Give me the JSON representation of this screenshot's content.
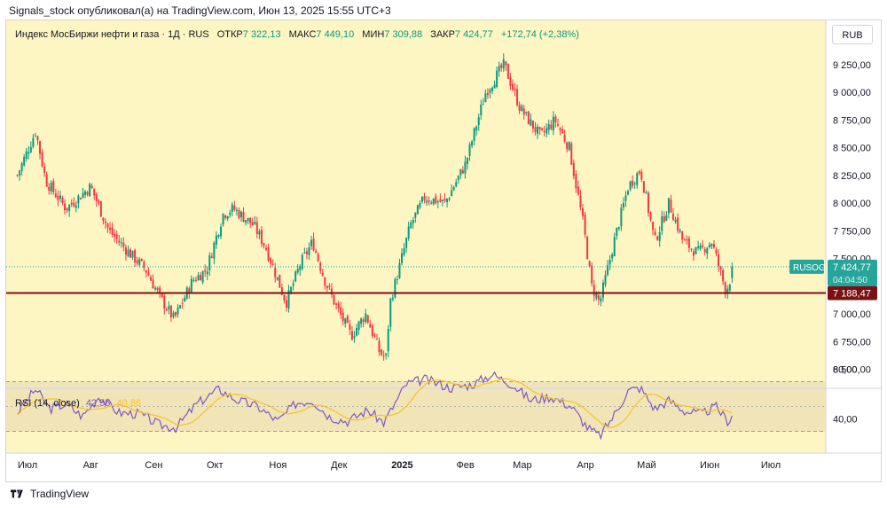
{
  "header": {
    "publisher": "Signals_stock опубликовал(а) на TradingView.com, Июн 13, 2025 15:55 UTC+3"
  },
  "legend": {
    "name": "Индекс МосБиржи нефти и газа · 1Д · RUS",
    "open_label": "ОТКР",
    "open": "7 322,13",
    "high_label": "МАКС",
    "high": "7 449,10",
    "low_label": "МИН",
    "low": "7 309,88",
    "close_label": "ЗАКР",
    "close": "7 424,77",
    "change": "+172,74 (+2,38%)"
  },
  "currency": "RUB",
  "price_axis": {
    "ticks": [
      {
        "label": "9 250,00",
        "v": 9250
      },
      {
        "label": "9 000,00",
        "v": 9000
      },
      {
        "label": "8 750,00",
        "v": 8750
      },
      {
        "label": "8 500,00",
        "v": 8500
      },
      {
        "label": "8 250,00",
        "v": 8250
      },
      {
        "label": "8 000,00",
        "v": 8000
      },
      {
        "label": "7 750,00",
        "v": 7750
      },
      {
        "label": "7 500,00",
        "v": 7500
      },
      {
        "label": "7 000,00",
        "v": 7000
      },
      {
        "label": "6 750,00",
        "v": 6750
      },
      {
        "label": "6 500,00",
        "v": 6500
      }
    ]
  },
  "price_tag": {
    "symbol": "RUSOG",
    "price": "7 424,77",
    "countdown": "04:04:50",
    "value": 7424.77
  },
  "support_line": {
    "label": "7 188,47",
    "value": 7188.47
  },
  "rsi": {
    "title": "RSI (14, close)",
    "rsi_value": "42,55",
    "ma_value": "40,86",
    "ticks": [
      {
        "label": "80,00",
        "v": 80
      },
      {
        "label": "40,00",
        "v": 40
      }
    ]
  },
  "time_axis": [
    {
      "label": "Июл",
      "bold": false
    },
    {
      "label": "Авг",
      "bold": false
    },
    {
      "label": "Сен",
      "bold": false
    },
    {
      "label": "Окт",
      "bold": false
    },
    {
      "label": "Ноя",
      "bold": false
    },
    {
      "label": "Дек",
      "bold": false
    },
    {
      "label": "2025",
      "bold": true
    },
    {
      "label": "Фев",
      "bold": false
    },
    {
      "label": "Мар",
      "bold": false
    },
    {
      "label": "Апр",
      "bold": false
    },
    {
      "label": "Май",
      "bold": false
    },
    {
      "label": "Июн",
      "bold": false
    },
    {
      "label": "Июл",
      "bold": false
    }
  ],
  "colors": {
    "up": "#089981",
    "down": "#f23645",
    "support": "#7b1113",
    "rsi": "#7e57c2",
    "rsi_ma": "#f7c325",
    "bg": "#fdf6c3",
    "tag": "#26a69a"
  },
  "footer": {
    "brand": "TradingView"
  },
  "chart_data": {
    "type": "candlestick",
    "interval": "1D",
    "y_range": [
      6400,
      9400
    ],
    "close_path": [
      [
        "2024-06-26",
        8250
      ],
      [
        "2024-07-05",
        8650
      ],
      [
        "2024-07-10",
        8200
      ],
      [
        "2024-07-20",
        7950
      ],
      [
        "2024-08-01",
        8150
      ],
      [
        "2024-08-10",
        7750
      ],
      [
        "2024-08-20",
        7550
      ],
      [
        "2024-08-28",
        7400
      ],
      [
        "2024-09-04",
        7150
      ],
      [
        "2024-09-11",
        6950
      ],
      [
        "2024-09-20",
        7300
      ],
      [
        "2024-09-27",
        7400
      ],
      [
        "2024-10-05",
        7900
      ],
      [
        "2024-10-10",
        7950
      ],
      [
        "2024-10-20",
        7800
      ],
      [
        "2024-10-26",
        7600
      ],
      [
        "2024-11-05",
        7100
      ],
      [
        "2024-11-12",
        7450
      ],
      [
        "2024-11-18",
        7650
      ],
      [
        "2024-11-24",
        7300
      ],
      [
        "2024-11-30",
        7050
      ],
      [
        "2024-12-07",
        6800
      ],
      [
        "2024-12-14",
        7000
      ],
      [
        "2024-12-21",
        6650
      ],
      [
        "2024-12-24",
        6600
      ],
      [
        "2024-12-26",
        7100
      ],
      [
        "2025-01-05",
        7800
      ],
      [
        "2025-01-12",
        8050
      ],
      [
        "2025-01-22",
        8000
      ],
      [
        "2025-02-01",
        8350
      ],
      [
        "2025-02-11",
        9000
      ],
      [
        "2025-02-20",
        9250
      ],
      [
        "2025-02-28",
        8850
      ],
      [
        "2025-03-10",
        8600
      ],
      [
        "2025-03-17",
        8750
      ],
      [
        "2025-03-24",
        8500
      ],
      [
        "2025-03-31",
        7800
      ],
      [
        "2025-04-04",
        7250
      ],
      [
        "2025-04-08",
        7100
      ],
      [
        "2025-04-15",
        7650
      ],
      [
        "2025-04-22",
        8150
      ],
      [
        "2025-04-28",
        8300
      ],
      [
        "2025-05-05",
        7650
      ],
      [
        "2025-05-12",
        8000
      ],
      [
        "2025-05-19",
        7650
      ],
      [
        "2025-05-26",
        7550
      ],
      [
        "2025-06-02",
        7650
      ],
      [
        "2025-06-09",
        7200
      ],
      [
        "2025-06-13",
        7425
      ]
    ],
    "rsi_range": [
      20,
      90
    ],
    "rsi_path": [
      [
        "2024-06-26",
        45
      ],
      [
        "2024-07-05",
        64
      ],
      [
        "2024-07-12",
        48
      ],
      [
        "2024-07-20",
        52
      ],
      [
        "2024-07-28",
        42
      ],
      [
        "2024-08-05",
        58
      ],
      [
        "2024-08-15",
        45
      ],
      [
        "2024-08-25",
        44
      ],
      [
        "2024-09-04",
        35
      ],
      [
        "2024-09-12",
        33
      ],
      [
        "2024-09-22",
        52
      ],
      [
        "2024-10-03",
        64
      ],
      [
        "2024-10-12",
        55
      ],
      [
        "2024-10-22",
        50
      ],
      [
        "2024-11-01",
        38
      ],
      [
        "2024-11-10",
        53
      ],
      [
        "2024-11-18",
        55
      ],
      [
        "2024-11-26",
        42
      ],
      [
        "2024-12-05",
        38
      ],
      [
        "2024-12-15",
        47
      ],
      [
        "2024-12-23",
        37
      ],
      [
        "2025-01-03",
        68
      ],
      [
        "2025-01-12",
        72
      ],
      [
        "2025-01-25",
        65
      ],
      [
        "2025-02-05",
        68
      ],
      [
        "2025-02-14",
        76
      ],
      [
        "2025-02-24",
        68
      ],
      [
        "2025-03-05",
        55
      ],
      [
        "2025-03-15",
        58
      ],
      [
        "2025-03-25",
        50
      ],
      [
        "2025-04-02",
        33
      ],
      [
        "2025-04-08",
        26
      ],
      [
        "2025-04-15",
        43
      ],
      [
        "2025-04-22",
        63
      ],
      [
        "2025-04-28",
        65
      ],
      [
        "2025-05-05",
        48
      ],
      [
        "2025-05-12",
        55
      ],
      [
        "2025-05-20",
        46
      ],
      [
        "2025-05-28",
        44
      ],
      [
        "2025-06-04",
        50
      ],
      [
        "2025-06-10",
        38
      ],
      [
        "2025-06-13",
        42.55
      ]
    ]
  }
}
